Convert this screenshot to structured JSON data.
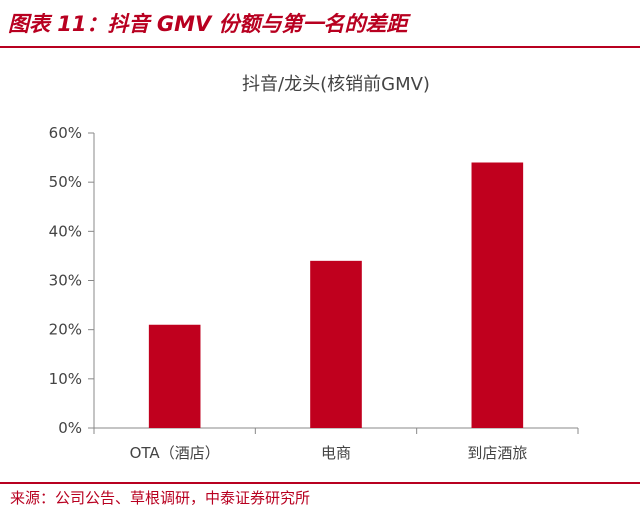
{
  "figure": {
    "title": "图表 11：抖音 GMV 份额与第一名的差距",
    "source": "来源：公司公告、草根调研，中泰证券研究所"
  },
  "colors": {
    "accent": "#b80020",
    "bar": "#c0001e",
    "axis": "#888888",
    "text": "#444444"
  },
  "chart_data": {
    "type": "bar",
    "title": "抖音/龙头(核销前GMV)",
    "xlabel": "",
    "ylabel": "",
    "categories": [
      "OTA（酒店）",
      "电商",
      "到店酒旅"
    ],
    "values": [
      21,
      34,
      54
    ],
    "value_format": "percent",
    "ylim": [
      0,
      60
    ],
    "yticks": [
      0,
      10,
      20,
      30,
      40,
      50,
      60
    ],
    "ytick_labels": [
      "0%",
      "10%",
      "20%",
      "30%",
      "40%",
      "50%",
      "60%"
    ],
    "grid": false,
    "legend": "none"
  }
}
